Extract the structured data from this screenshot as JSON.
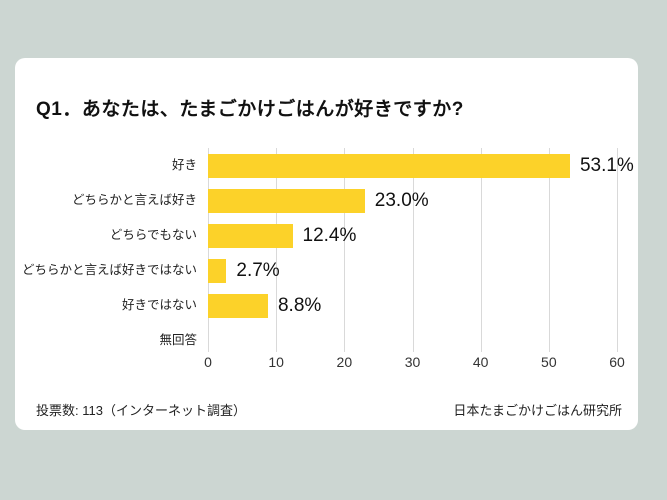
{
  "page": {
    "background_color": "#ccd6d2",
    "card_color": "#ffffff"
  },
  "title": "Q1．あなたは、たまごかけごはんが好きですか?",
  "chart_data": {
    "type": "bar",
    "orientation": "horizontal",
    "title": "Q1．あなたは、たまごかけごはんが好きですか?",
    "categories": [
      "好き",
      "どちらかと言えば好き",
      "どちらでもない",
      "どちらかと言えば好きではない",
      "好きではない",
      "無回答"
    ],
    "values": [
      53.1,
      23.0,
      12.4,
      2.7,
      8.8,
      0
    ],
    "value_labels": [
      "53.1%",
      "23.0%",
      "12.4%",
      "2.7%",
      "8.8%",
      ""
    ],
    "xticks": [
      0,
      10,
      20,
      30,
      40,
      50,
      60
    ],
    "xlim": [
      0,
      60
    ],
    "grid": true,
    "legend": false,
    "bar_color": "#fcd229",
    "gridline_color": "#d9d9d9"
  },
  "footer": {
    "left": "投票数: 113（インターネット調査）",
    "right": "日本たまごかけごはん研究所"
  }
}
